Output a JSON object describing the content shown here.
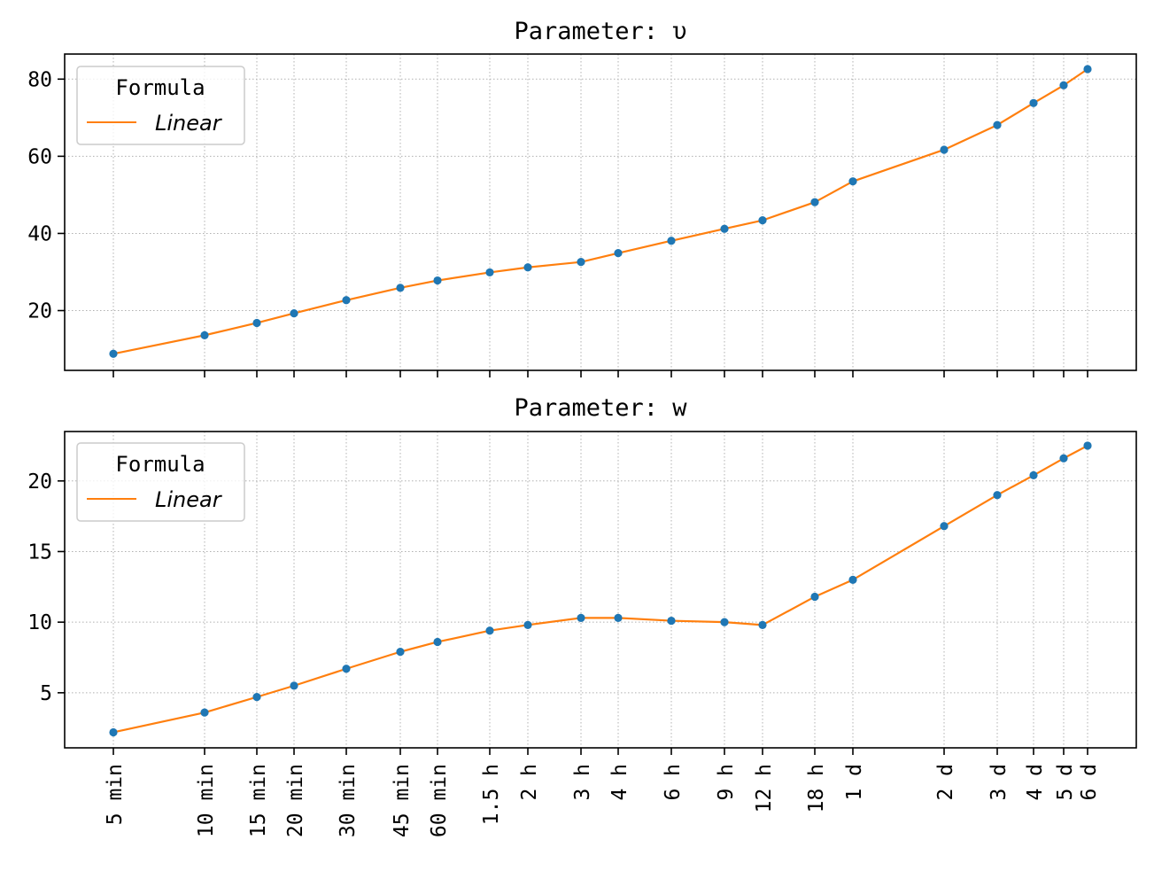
{
  "chart_data": [
    {
      "type": "line",
      "title": "Parameter: υ",
      "xlabel": "",
      "ylabel": "",
      "x_scale": "log",
      "categories": [
        "5 min",
        "10 min",
        "15 min",
        "20 min",
        "30 min",
        "45 min",
        "60 min",
        "1.5 h",
        "2 h",
        "3 h",
        "4 h",
        "6 h",
        "9 h",
        "12 h",
        "18 h",
        "1 d",
        "2 d",
        "3 d",
        "4 d",
        "5 d",
        "6 d"
      ],
      "x_hours": [
        0.0833,
        0.1667,
        0.25,
        0.3333,
        0.5,
        0.75,
        1,
        1.5,
        2,
        3,
        4,
        6,
        9,
        12,
        18,
        24,
        48,
        72,
        96,
        120,
        144
      ],
      "ylim": [
        4.5,
        86.5
      ],
      "yticks": [
        20,
        40,
        60,
        80
      ],
      "grid": true,
      "legend": {
        "title": "Formula",
        "placement": "upper-left"
      },
      "series": [
        {
          "name": "Linear",
          "marker_color": "#1f77b4",
          "line_color": "#ff7f0e",
          "values": [
            8.8,
            13.6,
            16.8,
            19.3,
            22.7,
            25.9,
            27.8,
            29.9,
            31.2,
            32.6,
            34.9,
            38.1,
            41.2,
            43.4,
            48.1,
            53.5,
            61.7,
            68.1,
            73.8,
            78.4,
            82.6
          ]
        }
      ]
    },
    {
      "type": "line",
      "title": "Parameter: w",
      "xlabel": "",
      "ylabel": "",
      "x_scale": "log",
      "categories": [
        "5 min",
        "10 min",
        "15 min",
        "20 min",
        "30 min",
        "45 min",
        "60 min",
        "1.5 h",
        "2 h",
        "3 h",
        "4 h",
        "6 h",
        "9 h",
        "12 h",
        "18 h",
        "1 d",
        "2 d",
        "3 d",
        "4 d",
        "5 d",
        "6 d"
      ],
      "x_hours": [
        0.0833,
        0.1667,
        0.25,
        0.3333,
        0.5,
        0.75,
        1,
        1.5,
        2,
        3,
        4,
        6,
        9,
        12,
        18,
        24,
        48,
        72,
        96,
        120,
        144
      ],
      "ylim": [
        1.1,
        23.5
      ],
      "yticks": [
        5,
        10,
        15,
        20
      ],
      "grid": true,
      "legend": {
        "title": "Formula",
        "placement": "upper-left"
      },
      "series": [
        {
          "name": "Linear",
          "marker_color": "#1f77b4",
          "line_color": "#ff7f0e",
          "values": [
            2.2,
            3.6,
            4.7,
            5.5,
            6.7,
            7.9,
            8.6,
            9.4,
            9.8,
            10.3,
            10.3,
            10.1,
            10.0,
            9.8,
            11.8,
            13.0,
            16.8,
            19.0,
            20.4,
            21.6,
            22.5
          ]
        }
      ]
    }
  ]
}
